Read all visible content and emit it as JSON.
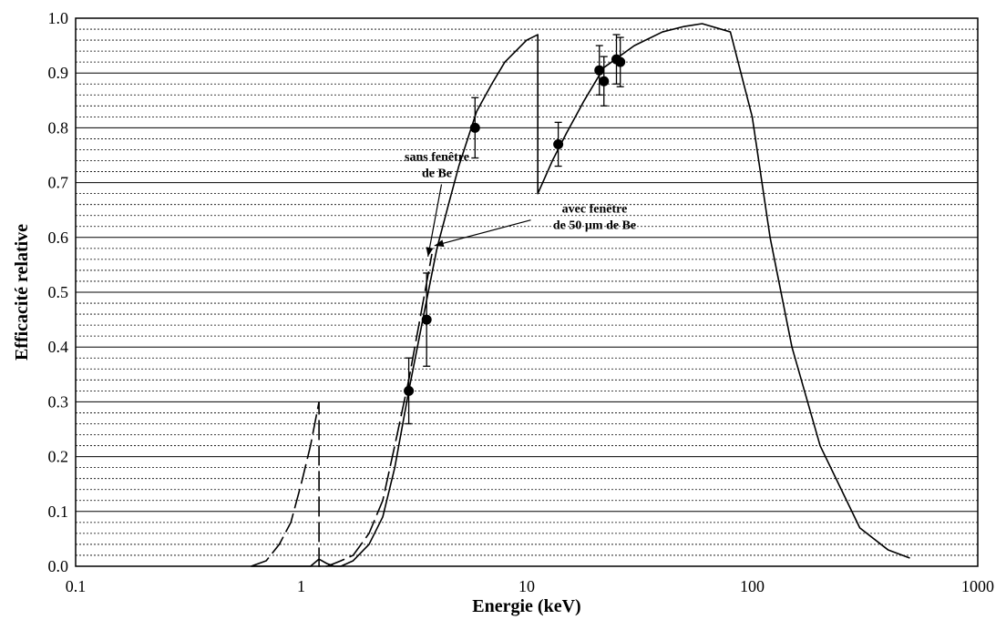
{
  "chart_data": {
    "type": "line",
    "xlabel": "Energie (keV)",
    "ylabel": "Efficacité relative",
    "xscale": "log",
    "xlim": [
      0.1,
      1000
    ],
    "ylim": [
      0,
      1.0
    ],
    "grid": true,
    "x_tick_labels": [
      "0.1",
      "1",
      "10",
      "100",
      "1000"
    ],
    "y_tick_labels": [
      "0.0",
      "0.1",
      "0.2",
      "0.3",
      "0.4",
      "0.5",
      "0.6",
      "0.7",
      "0.8",
      "0.9",
      "1.0"
    ],
    "series": [
      {
        "style": "solid",
        "x": [
          0.6,
          0.8,
          0.95,
          1.1,
          1.2,
          1.3,
          1.4,
          1.5,
          1.7,
          2.0,
          2.3,
          2.6,
          3.0,
          3.5,
          4.0,
          4.5,
          5.0,
          6.0,
          7.0,
          8.0,
          10.0,
          11.2,
          11.2,
          13.0,
          15.0,
          18.0,
          22.0,
          30.0,
          40.0,
          50.0,
          60.0,
          80.0,
          100.0,
          120.0,
          150.0,
          200.0,
          300.0,
          400.0,
          500.0
        ],
        "y": [
          0.0,
          0.0,
          0.0,
          0.0,
          0.013,
          0.005,
          0.0,
          0.0,
          0.01,
          0.04,
          0.09,
          0.18,
          0.32,
          0.46,
          0.58,
          0.66,
          0.73,
          0.83,
          0.88,
          0.92,
          0.96,
          0.97,
          0.68,
          0.74,
          0.79,
          0.85,
          0.91,
          0.95,
          0.975,
          0.985,
          0.99,
          0.975,
          0.82,
          0.6,
          0.4,
          0.22,
          0.07,
          0.03,
          0.015
        ]
      },
      {
        "style": "dashed",
        "x": [
          0.6,
          0.7,
          0.8,
          0.9,
          1.0,
          1.1,
          1.2,
          1.2,
          1.3,
          1.4,
          1.5,
          1.7,
          2.0,
          2.3,
          2.6,
          3.0,
          3.5,
          3.8
        ],
        "y": [
          0.0,
          0.01,
          0.04,
          0.08,
          0.15,
          0.22,
          0.3,
          0.0,
          0.0,
          0.005,
          0.01,
          0.02,
          0.06,
          0.12,
          0.22,
          0.34,
          0.49,
          0.57
        ]
      },
      {
        "style": "points",
        "x": [
          3.0,
          3.6,
          5.9,
          13.8,
          21.0,
          22.0,
          25.0,
          26.0
        ],
        "y": [
          0.32,
          0.45,
          0.8,
          0.77,
          0.905,
          0.885,
          0.925,
          0.92
        ],
        "err": [
          0.06,
          0.085,
          0.055,
          0.04,
          0.045,
          0.045,
          0.045,
          0.045
        ]
      }
    ],
    "annotations": [
      {
        "lines": [
          "sans fenêtre",
          "de Be"
        ],
        "x": 4.0,
        "y": 0.74,
        "target_x": 3.65,
        "target_y": 0.565
      },
      {
        "lines": [
          "avec fenêtre",
          "de  50 µm de Be"
        ],
        "x": 20.0,
        "y": 0.645,
        "target_x": 3.9,
        "target_y": 0.585
      }
    ]
  }
}
